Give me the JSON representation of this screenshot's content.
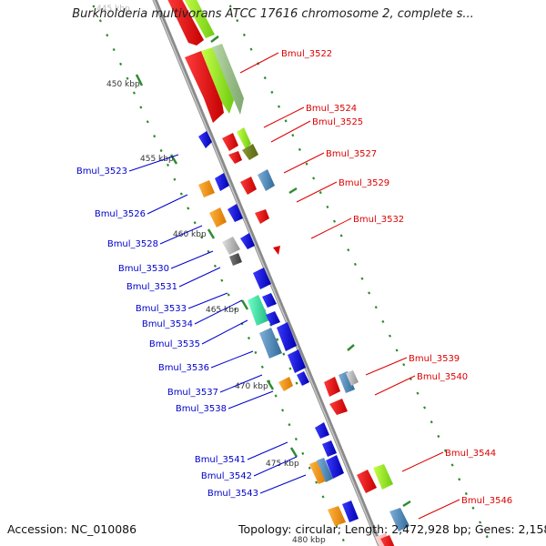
{
  "title": "Burkholderia multivorans ATCC 17616 chromosome 2, complete s...",
  "footer": {
    "accession": "Accession: NC_010086",
    "summary": "Topology: circular; Length: 2,472,928 bp; Genes: 2,158"
  },
  "colors": {
    "backbone": "#8a8a8a",
    "forward_label": "#dd0000",
    "reverse_label": "#0000cc",
    "kbp_dots": "#2e8b2e"
  },
  "kbp_ticks": [
    "445 kbp",
    "450 kbp",
    "455 kbp",
    "460 kbp",
    "465 kbp",
    "470 kbp",
    "475 kbp",
    "480 kbp"
  ],
  "forward_labels": [
    "Bmul_3522",
    "Bmul_3524",
    "Bmul_3525",
    "Bmul_3527",
    "Bmul_3529",
    "Bmul_3532",
    "Bmul_3539",
    "Bmul_3540",
    "Bmul_3544",
    "Bmul_3546"
  ],
  "reverse_labels": [
    "Bmul_3523",
    "Bmul_3526",
    "Bmul_3528",
    "Bmul_3530",
    "Bmul_3531",
    "Bmul_3533",
    "Bmul_3534",
    "Bmul_3535",
    "Bmul_3536",
    "Bmul_3537",
    "Bmul_3538",
    "Bmul_3541",
    "Bmul_3542",
    "Bmul_3543"
  ]
}
